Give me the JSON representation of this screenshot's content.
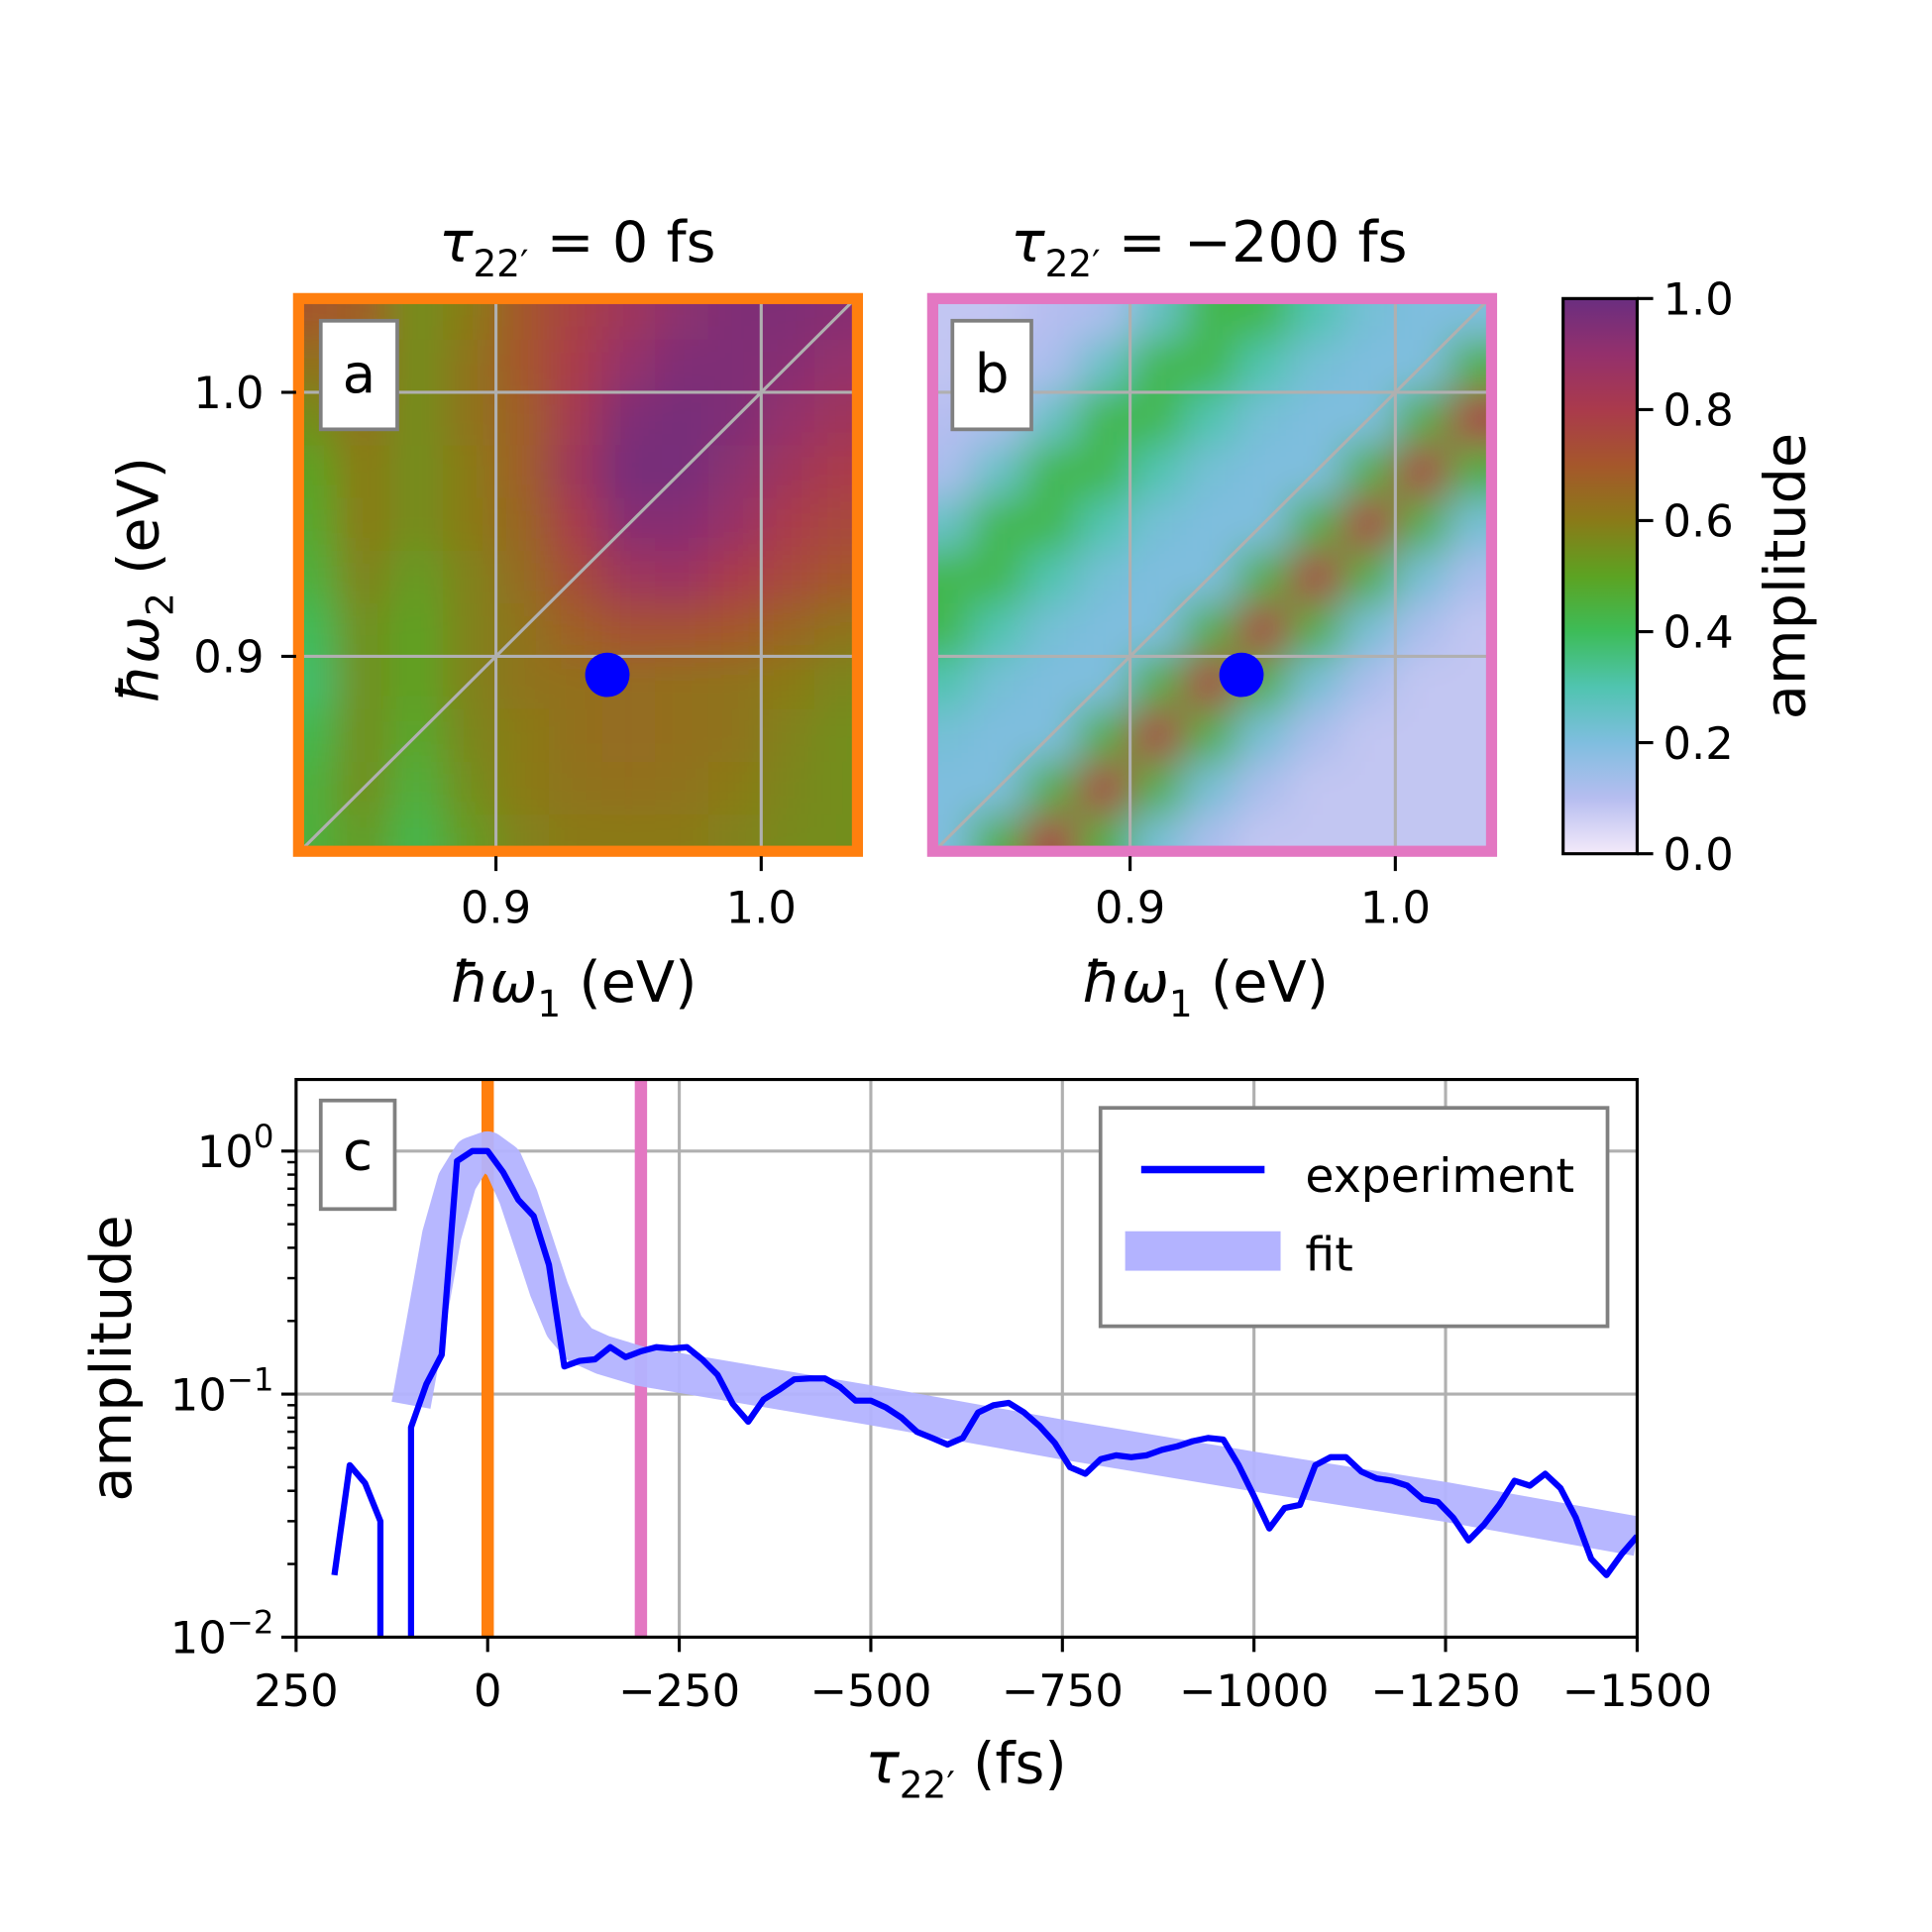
{
  "colormap": {
    "stops": [
      0,
      0.1,
      0.2,
      0.3,
      0.4,
      0.5,
      0.6,
      0.7,
      0.8,
      0.9,
      1.0
    ],
    "colors": [
      "#f4eafa",
      "#b6bdf0",
      "#7fbedf",
      "#50c4b0",
      "#3dbc58",
      "#5ca322",
      "#8a7a18",
      "#a5572b",
      "#aa3a4c",
      "#94306c",
      "#6a2e80"
    ]
  },
  "chart_data": [
    {
      "type": "heatmap",
      "panel": "a",
      "title": {
        "symbol": "τ",
        "sub": "22′",
        "rest": " = 0 fs"
      },
      "frame_color": "#ff7f0e",
      "xlabel": {
        "symbol": "ħω",
        "sub": "1",
        "rest": " (eV)"
      },
      "ylabel": {
        "symbol": "ħω",
        "sub": "2",
        "rest": " (eV)"
      },
      "xticks": [
        0.9,
        1.0
      ],
      "xtick_labels": [
        "0.9",
        "1.0"
      ],
      "yticks": [
        0.9,
        1.0
      ],
      "ytick_labels": [
        "0.9",
        "1.0"
      ],
      "xlim": [
        0.825,
        1.037
      ],
      "ylim": [
        0.825,
        1.036
      ],
      "x": [
        0.83,
        0.85,
        0.87,
        0.89,
        0.91,
        0.93,
        0.95,
        0.97,
        0.99,
        1.01,
        1.03
      ],
      "y": [
        1.03,
        1.01,
        0.99,
        0.97,
        0.95,
        0.93,
        0.91,
        0.89,
        0.87,
        0.85,
        0.83
      ],
      "z": [
        [
          0.7,
          0.68,
          0.55,
          0.6,
          0.7,
          0.78,
          0.85,
          0.92,
          0.95,
          0.95,
          0.93
        ],
        [
          0.62,
          0.65,
          0.55,
          0.62,
          0.7,
          0.8,
          0.9,
          0.95,
          0.95,
          0.93,
          0.9
        ],
        [
          0.55,
          0.62,
          0.55,
          0.62,
          0.68,
          0.82,
          0.95,
          0.97,
          0.95,
          0.9,
          0.85
        ],
        [
          0.5,
          0.6,
          0.55,
          0.6,
          0.68,
          0.85,
          0.97,
          0.97,
          0.92,
          0.85,
          0.8
        ],
        [
          0.48,
          0.6,
          0.55,
          0.6,
          0.66,
          0.8,
          0.93,
          0.93,
          0.88,
          0.8,
          0.75
        ],
        [
          0.45,
          0.58,
          0.52,
          0.58,
          0.64,
          0.74,
          0.85,
          0.87,
          0.8,
          0.75,
          0.7
        ],
        [
          0.4,
          0.55,
          0.5,
          0.58,
          0.62,
          0.68,
          0.72,
          0.72,
          0.7,
          0.66,
          0.62
        ],
        [
          0.38,
          0.55,
          0.5,
          0.58,
          0.62,
          0.63,
          0.64,
          0.63,
          0.62,
          0.6,
          0.57
        ],
        [
          0.42,
          0.55,
          0.48,
          0.57,
          0.6,
          0.63,
          0.64,
          0.63,
          0.62,
          0.58,
          0.55
        ],
        [
          0.45,
          0.55,
          0.45,
          0.55,
          0.6,
          0.62,
          0.63,
          0.62,
          0.6,
          0.57,
          0.55
        ],
        [
          0.45,
          0.52,
          0.42,
          0.52,
          0.58,
          0.6,
          0.6,
          0.6,
          0.58,
          0.56,
          0.55
        ]
      ],
      "marker": {
        "x": 0.942,
        "y": 0.893,
        "color": "#0000ff"
      },
      "grid": true,
      "diagonal": true
    },
    {
      "type": "heatmap",
      "panel": "b",
      "title": {
        "symbol": "τ",
        "sub": "22′",
        "rest": " = −200 fs"
      },
      "frame_color": "#e377c2",
      "xlabel": {
        "symbol": "ħω",
        "sub": "1",
        "rest": " (eV)"
      },
      "xticks": [
        0.9,
        1.0
      ],
      "xtick_labels": [
        "0.9",
        "1.0"
      ],
      "xlim": [
        0.825,
        1.037
      ],
      "ylim": [
        0.825,
        1.036
      ],
      "x": [
        0.83,
        0.85,
        0.87,
        0.89,
        0.91,
        0.93,
        0.95,
        0.97,
        0.99,
        1.01,
        1.03
      ],
      "y": [
        1.03,
        1.01,
        0.99,
        0.97,
        0.95,
        0.93,
        0.91,
        0.89,
        0.87,
        0.85,
        0.83
      ],
      "z": [
        [
          0.08,
          0.08,
          0.1,
          0.12,
          0.25,
          0.42,
          0.42,
          0.3,
          0.22,
          0.2,
          0.2
        ],
        [
          0.08,
          0.1,
          0.12,
          0.25,
          0.42,
          0.42,
          0.3,
          0.22,
          0.2,
          0.2,
          0.45
        ],
        [
          0.1,
          0.12,
          0.25,
          0.42,
          0.42,
          0.3,
          0.22,
          0.2,
          0.2,
          0.45,
          0.8
        ],
        [
          0.12,
          0.25,
          0.42,
          0.42,
          0.3,
          0.22,
          0.2,
          0.2,
          0.45,
          0.8,
          0.45
        ],
        [
          0.25,
          0.42,
          0.42,
          0.3,
          0.22,
          0.2,
          0.2,
          0.45,
          0.8,
          0.45,
          0.22
        ],
        [
          0.42,
          0.42,
          0.3,
          0.22,
          0.2,
          0.2,
          0.45,
          0.8,
          0.45,
          0.22,
          0.12
        ],
        [
          0.42,
          0.3,
          0.22,
          0.2,
          0.2,
          0.45,
          0.8,
          0.45,
          0.22,
          0.12,
          0.08
        ],
        [
          0.3,
          0.22,
          0.2,
          0.2,
          0.45,
          0.8,
          0.45,
          0.22,
          0.12,
          0.08,
          0.08
        ],
        [
          0.22,
          0.2,
          0.2,
          0.45,
          0.8,
          0.45,
          0.22,
          0.12,
          0.08,
          0.08,
          0.08
        ],
        [
          0.2,
          0.2,
          0.45,
          0.8,
          0.45,
          0.22,
          0.12,
          0.08,
          0.08,
          0.08,
          0.08
        ],
        [
          0.2,
          0.45,
          0.8,
          0.45,
          0.22,
          0.12,
          0.08,
          0.08,
          0.08,
          0.08,
          0.08
        ]
      ],
      "marker": {
        "x": 0.942,
        "y": 0.893,
        "color": "#0000ff"
      },
      "grid": true,
      "diagonal": true
    },
    {
      "type": "colorbar",
      "label": "amplitude",
      "range": [
        0,
        1
      ],
      "ticks": [
        0,
        0.2,
        0.4,
        0.6,
        0.8,
        1.0
      ],
      "tick_labels": [
        "0.0",
        "0.2",
        "0.4",
        "0.6",
        "0.8",
        "1.0"
      ]
    },
    {
      "type": "line",
      "panel": "c",
      "xlabel": {
        "symbol": "τ",
        "sub": "22′",
        "rest": " (fs)"
      },
      "ylabel": "amplitude",
      "xlim": [
        250,
        -1500
      ],
      "ylim": [
        0.01,
        1.97
      ],
      "yscale": "log",
      "grid": true,
      "xticks": [
        250,
        0,
        -250,
        -500,
        -750,
        -1000,
        -1250,
        -1500
      ],
      "xtick_labels": [
        "250",
        "0",
        "−250",
        "−500",
        "−750",
        "−1000",
        "−1250",
        "−1500"
      ],
      "yticks": [
        1,
        0.1,
        0.01
      ],
      "ytick_labels": [
        {
          "base": "10",
          "exp": "0"
        },
        {
          "base": "10",
          "exp": "−1"
        },
        {
          "base": "10",
          "exp": "−2"
        }
      ],
      "legend_position": "top-right",
      "vlines": [
        {
          "x": 0,
          "color": "#ff7f0e"
        },
        {
          "x": -200,
          "color": "#e377c2"
        }
      ],
      "series": [
        {
          "name": "experiment",
          "color": "#0000ff",
          "x": [
            200,
            180,
            160,
            140,
            120,
            100,
            80,
            60,
            40,
            20,
            0,
            -20,
            -40,
            -60,
            -80,
            -100,
            -120,
            -140,
            -160,
            -180,
            -200,
            -220,
            -240,
            -260,
            -280,
            -300,
            -320,
            -340,
            -360,
            -380,
            -400,
            -420,
            -440,
            -460,
            -480,
            -500,
            -520,
            -540,
            -560,
            -580,
            -600,
            -620,
            -640,
            -660,
            -680,
            -700,
            -720,
            -740,
            -760,
            -780,
            -800,
            -820,
            -840,
            -860,
            -880,
            -900,
            -920,
            -940,
            -960,
            -980,
            -1000,
            -1020,
            -1040,
            -1060,
            -1080,
            -1100,
            -1120,
            -1140,
            -1160,
            -1180,
            -1200,
            -1220,
            -1240,
            -1260,
            -1280,
            -1300,
            -1320,
            -1340,
            -1360,
            -1380,
            -1400,
            -1420,
            -1440,
            -1460,
            -1480,
            -1500
          ],
          "y": [
            0.018,
            0.051,
            0.043,
            0.03,
            0,
            0.073,
            0.11,
            0.145,
            0.91,
            1.0,
            1.0,
            0.82,
            0.63,
            0.54,
            0.34,
            0.13,
            0.137,
            0.139,
            0.156,
            0.142,
            0.15,
            0.156,
            0.154,
            0.156,
            0.139,
            0.12,
            0.091,
            0.077,
            0.095,
            0.104,
            0.115,
            0.116,
            0.116,
            0.107,
            0.094,
            0.094,
            0.088,
            0.08,
            0.07,
            0.066,
            0.062,
            0.066,
            0.084,
            0.09,
            0.092,
            0.084,
            0.074,
            0.063,
            0.05,
            0.047,
            0.054,
            0.056,
            0.055,
            0.056,
            0.059,
            0.061,
            0.064,
            0.066,
            0.065,
            0.051,
            0.038,
            0.028,
            0.034,
            0.035,
            0.051,
            0.055,
            0.055,
            0.048,
            0.045,
            0.044,
            0.042,
            0.037,
            0.036,
            0.031,
            0.025,
            0.029,
            0.035,
            0.044,
            0.042,
            0.047,
            0.041,
            0.031,
            0.021,
            0.018,
            0.022,
            0.026
          ]
        },
        {
          "name": "fit",
          "color": "#b3b3ff",
          "x": [
            100,
            80,
            60,
            40,
            20,
            0,
            -20,
            -40,
            -60,
            -80,
            -100,
            -120,
            -150,
            -200,
            -300,
            -500,
            -750,
            -1000,
            -1250,
            -1500
          ],
          "y": [
            0.09,
            0.2,
            0.45,
            0.75,
            0.95,
            1.0,
            0.9,
            0.65,
            0.42,
            0.27,
            0.19,
            0.16,
            0.145,
            0.13,
            0.115,
            0.09,
            0.065,
            0.048,
            0.036,
            0.026
          ]
        }
      ]
    }
  ],
  "panel_letters": {
    "a": "a",
    "b": "b",
    "c": "c"
  }
}
